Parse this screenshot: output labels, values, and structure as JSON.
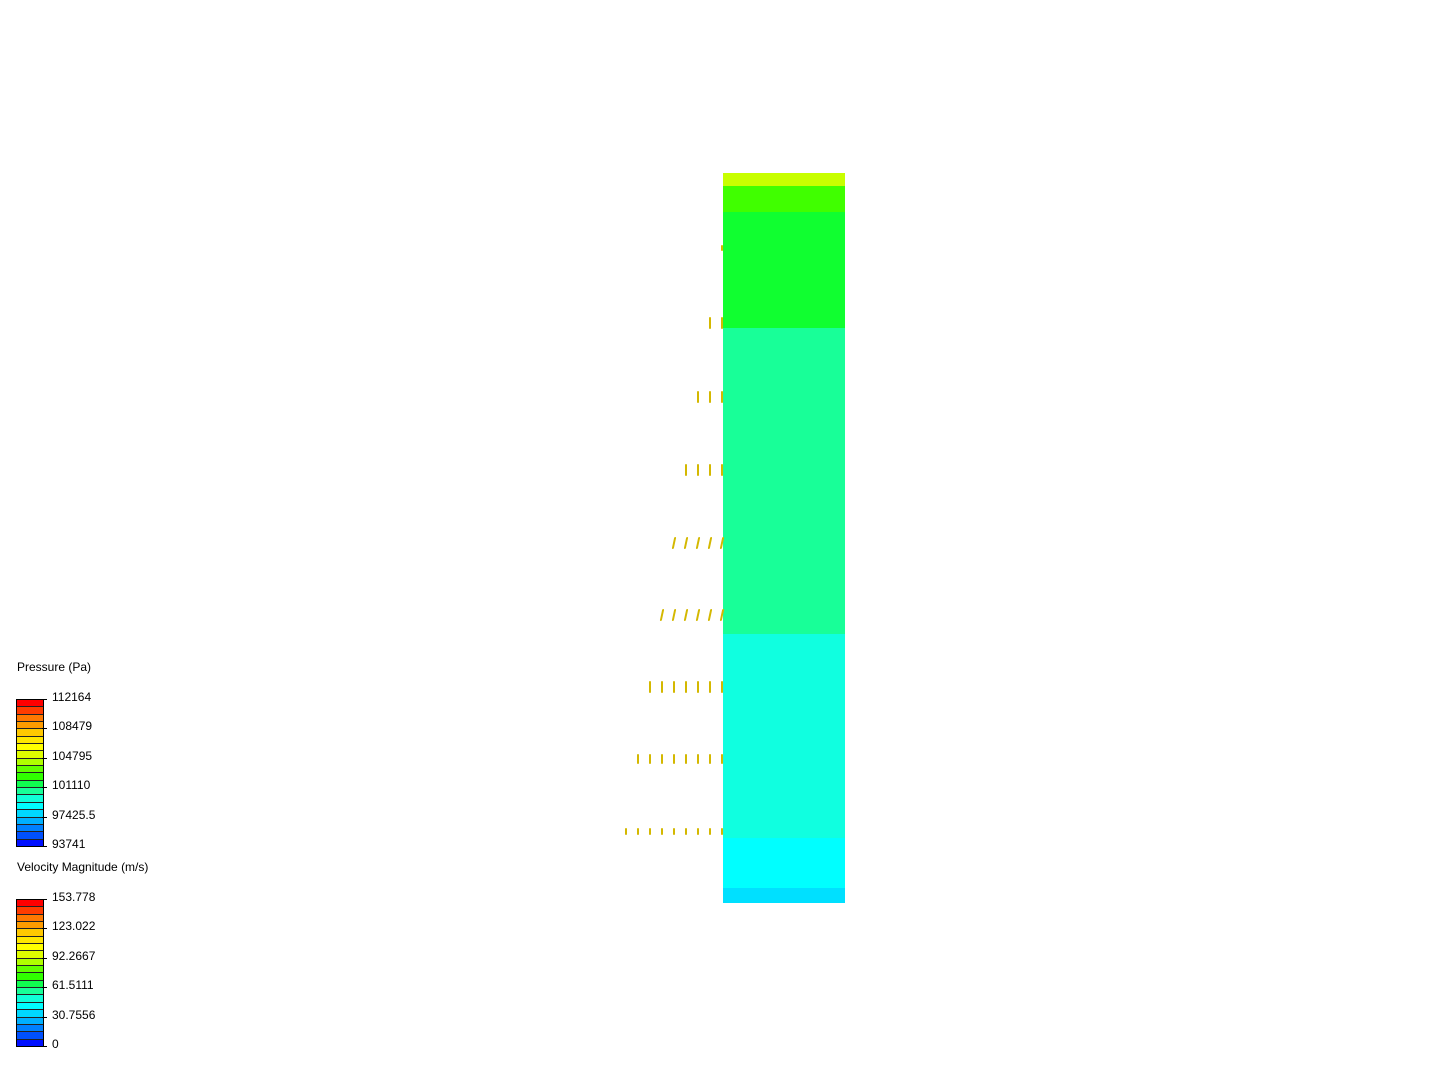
{
  "legends": [
    {
      "title": "Pressure (Pa)",
      "labels": [
        "112164",
        "108479",
        "104795",
        "101110",
        "97425.5",
        "93741"
      ]
    },
    {
      "title": "Velocity Magnitude (m/s)",
      "labels": [
        "153.778",
        "123.022",
        "92.2667",
        "61.5111",
        "30.7556",
        "0"
      ]
    }
  ],
  "colormap": [
    "#ff0000",
    "#ff3c00",
    "#ff7800",
    "#ff9c00",
    "#ffc800",
    "#ffe600",
    "#ffff00",
    "#e0ff00",
    "#b0ff00",
    "#60ff00",
    "#30ff00",
    "#10ff50",
    "#18ff98",
    "#10ffd8",
    "#00ffff",
    "#00d8ff",
    "#00b0ff",
    "#0080ff",
    "#0050ff",
    "#0010ff"
  ],
  "domain_bands": [
    "#c8ff00",
    "#40ff00",
    "#10ff30",
    "#18ff98",
    "#10ffe0",
    "#00ffff",
    "#00e0ff"
  ],
  "vector_color": "#d4b800"
}
